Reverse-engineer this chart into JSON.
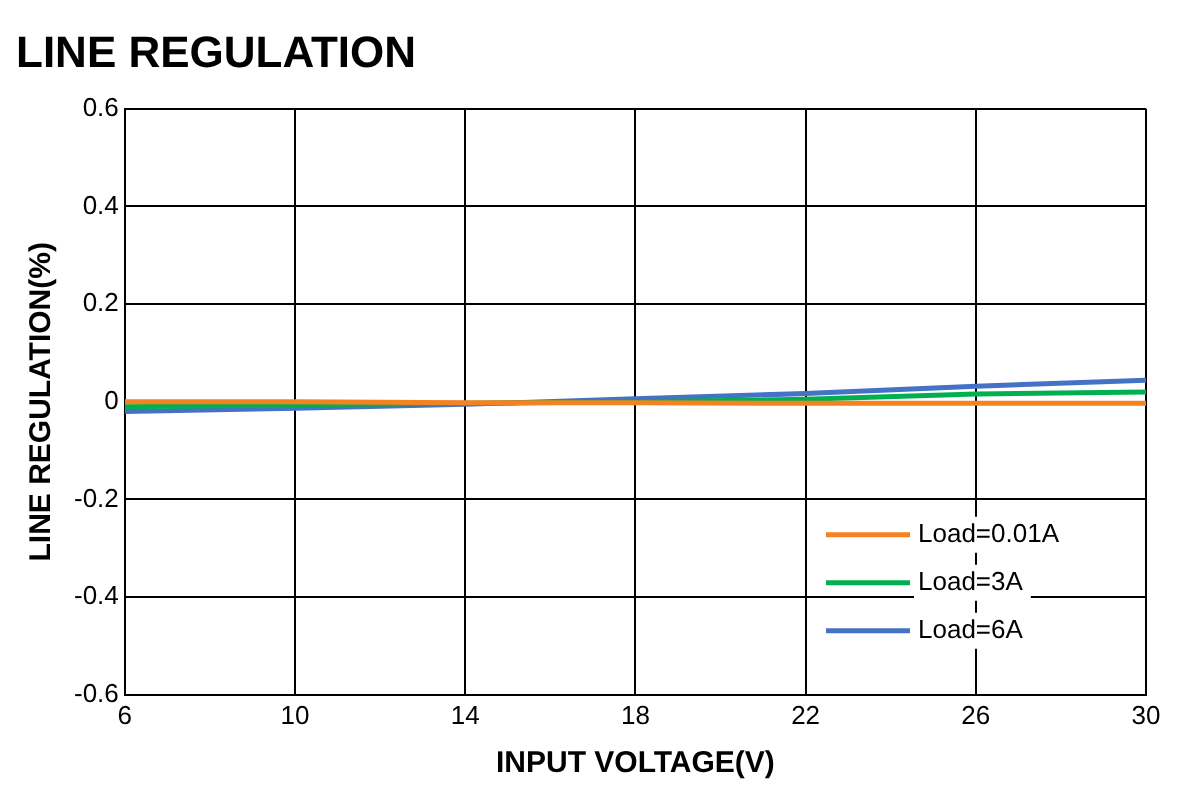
{
  "chart_data": {
    "type": "line",
    "title": "LINE REGULATION",
    "xlabel": "INPUT VOLTAGE(V)",
    "ylabel": "LINE REGULATION(%)",
    "x": [
      6,
      10,
      14,
      18,
      22,
      26,
      30
    ],
    "series": [
      {
        "name": "Load=0.01A",
        "color": "#f58220",
        "values": [
          0,
          0,
          -0.002,
          -0.002,
          -0.003,
          -0.003,
          -0.003
        ]
      },
      {
        "name": "Load=3A",
        "color": "#00b050",
        "values": [
          -0.01,
          -0.006,
          -0.003,
          0,
          0.005,
          0.016,
          0.02
        ]
      },
      {
        "name": "Load=6A",
        "color": "#4472c4",
        "values": [
          -0.02,
          -0.013,
          -0.005,
          0.006,
          0.017,
          0.032,
          0.044
        ]
      }
    ],
    "xlim": [
      6,
      30
    ],
    "xticks": [
      6,
      10,
      14,
      18,
      22,
      26,
      30
    ],
    "ylim": [
      -0.6,
      0.6
    ],
    "yticks": [
      -0.6,
      -0.4,
      -0.2,
      0,
      0.2,
      0.4,
      0.6
    ],
    "grid": true,
    "legend": "bottom right",
    "marker": "none",
    "line_style": "solid"
  }
}
